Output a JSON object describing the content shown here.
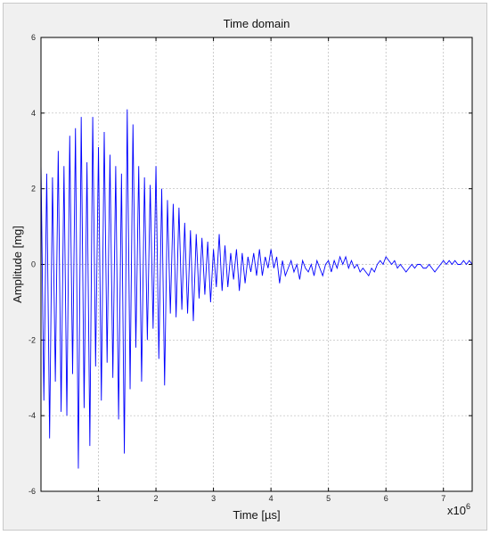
{
  "chart_data": {
    "type": "line",
    "title": "Time domain",
    "xlabel": "Time [µs]",
    "ylabel": "Amplitude [mg]",
    "x_exponent_label": "x10",
    "x_exponent_power": "6",
    "xlim": [
      0,
      7.5
    ],
    "ylim": [
      -6,
      6
    ],
    "xticks": [
      1,
      2,
      3,
      4,
      5,
      6,
      7
    ],
    "yticks": [
      -6,
      -4,
      -2,
      0,
      2,
      4,
      6
    ],
    "grid": true,
    "line_color": "#0000ff",
    "series": [
      {
        "x": [
          0.0,
          0.05,
          0.1,
          0.15,
          0.2,
          0.25,
          0.3,
          0.35,
          0.4,
          0.45,
          0.5,
          0.55,
          0.6,
          0.65,
          0.7,
          0.75,
          0.8,
          0.85,
          0.9,
          0.95,
          1.0,
          1.05,
          1.1,
          1.15,
          1.2,
          1.25,
          1.3,
          1.35,
          1.4,
          1.45,
          1.5,
          1.55,
          1.6,
          1.65,
          1.7,
          1.75,
          1.8,
          1.85,
          1.9,
          1.95,
          2.0,
          2.05,
          2.1,
          2.15,
          2.2,
          2.25,
          2.3,
          2.35,
          2.4,
          2.45,
          2.5,
          2.55,
          2.6,
          2.65,
          2.7,
          2.75,
          2.8,
          2.85,
          2.9,
          2.95,
          3.0,
          3.05,
          3.1,
          3.15,
          3.2,
          3.25,
          3.3,
          3.35,
          3.4,
          3.45,
          3.5,
          3.55,
          3.6,
          3.65,
          3.7,
          3.75,
          3.8,
          3.85,
          3.9,
          3.95,
          4.0,
          4.05,
          4.1,
          4.15,
          4.2,
          4.25,
          4.3,
          4.35,
          4.4,
          4.45,
          4.5,
          4.55,
          4.6,
          4.65,
          4.7,
          4.75,
          4.8,
          4.85,
          4.9,
          4.95,
          5.0,
          5.05,
          5.1,
          5.15,
          5.2,
          5.25,
          5.3,
          5.35,
          5.4,
          5.45,
          5.5,
          5.55,
          5.6,
          5.65,
          5.7,
          5.75,
          5.8,
          5.85,
          5.9,
          5.95,
          6.0,
          6.05,
          6.1,
          6.15,
          6.2,
          6.25,
          6.3,
          6.35,
          6.4,
          6.45,
          6.5,
          6.55,
          6.6,
          6.65,
          6.7,
          6.75,
          6.8,
          6.85,
          6.9,
          6.95,
          7.0,
          7.05,
          7.1,
          7.15,
          7.2,
          7.25,
          7.3,
          7.35,
          7.4,
          7.45,
          7.5
        ],
        "values": [
          2.7,
          -3.6,
          2.4,
          -4.6,
          2.3,
          -3.1,
          3.0,
          -3.9,
          2.6,
          -4.0,
          3.4,
          -2.9,
          3.6,
          -5.4,
          3.9,
          -3.8,
          2.7,
          -4.8,
          3.9,
          -2.7,
          3.1,
          -3.6,
          3.5,
          -2.6,
          2.9,
          -3.0,
          2.6,
          -4.1,
          2.4,
          -5.0,
          4.1,
          -3.3,
          3.7,
          -2.2,
          2.6,
          -3.1,
          2.3,
          -2.0,
          2.1,
          -1.7,
          2.6,
          -2.5,
          2.0,
          -3.2,
          1.7,
          -1.3,
          1.6,
          -1.4,
          1.5,
          -1.2,
          1.1,
          -1.3,
          0.9,
          -1.5,
          0.8,
          -0.9,
          0.7,
          -0.8,
          0.6,
          -1.0,
          0.4,
          -0.6,
          0.8,
          -0.7,
          0.5,
          -0.6,
          0.3,
          -0.4,
          0.4,
          -0.7,
          0.3,
          -0.5,
          0.2,
          -0.2,
          0.3,
          -0.3,
          0.4,
          -0.3,
          0.2,
          -0.1,
          0.4,
          -0.1,
          0.2,
          -0.5,
          0.1,
          -0.3,
          -0.1,
          0.1,
          -0.2,
          0.0,
          -0.4,
          0.1,
          -0.1,
          -0.2,
          0.0,
          -0.3,
          0.1,
          -0.1,
          -0.3,
          0.0,
          0.1,
          -0.2,
          0.1,
          -0.1,
          0.2,
          0.0,
          0.2,
          -0.1,
          0.1,
          -0.1,
          0.0,
          -0.2,
          -0.1,
          -0.2,
          -0.3,
          -0.1,
          -0.2,
          0.0,
          0.1,
          0.0,
          0.2,
          0.1,
          0.0,
          0.1,
          -0.1,
          0.0,
          -0.1,
          -0.2,
          -0.1,
          0.0,
          -0.1,
          0.0,
          0.0,
          -0.1,
          -0.1,
          0.0,
          -0.1,
          -0.2,
          -0.1,
          0.0,
          0.1,
          0.0,
          0.1,
          0.0,
          0.1,
          0.0,
          0.0,
          0.1,
          0.0,
          0.1,
          0.0
        ]
      }
    ]
  }
}
